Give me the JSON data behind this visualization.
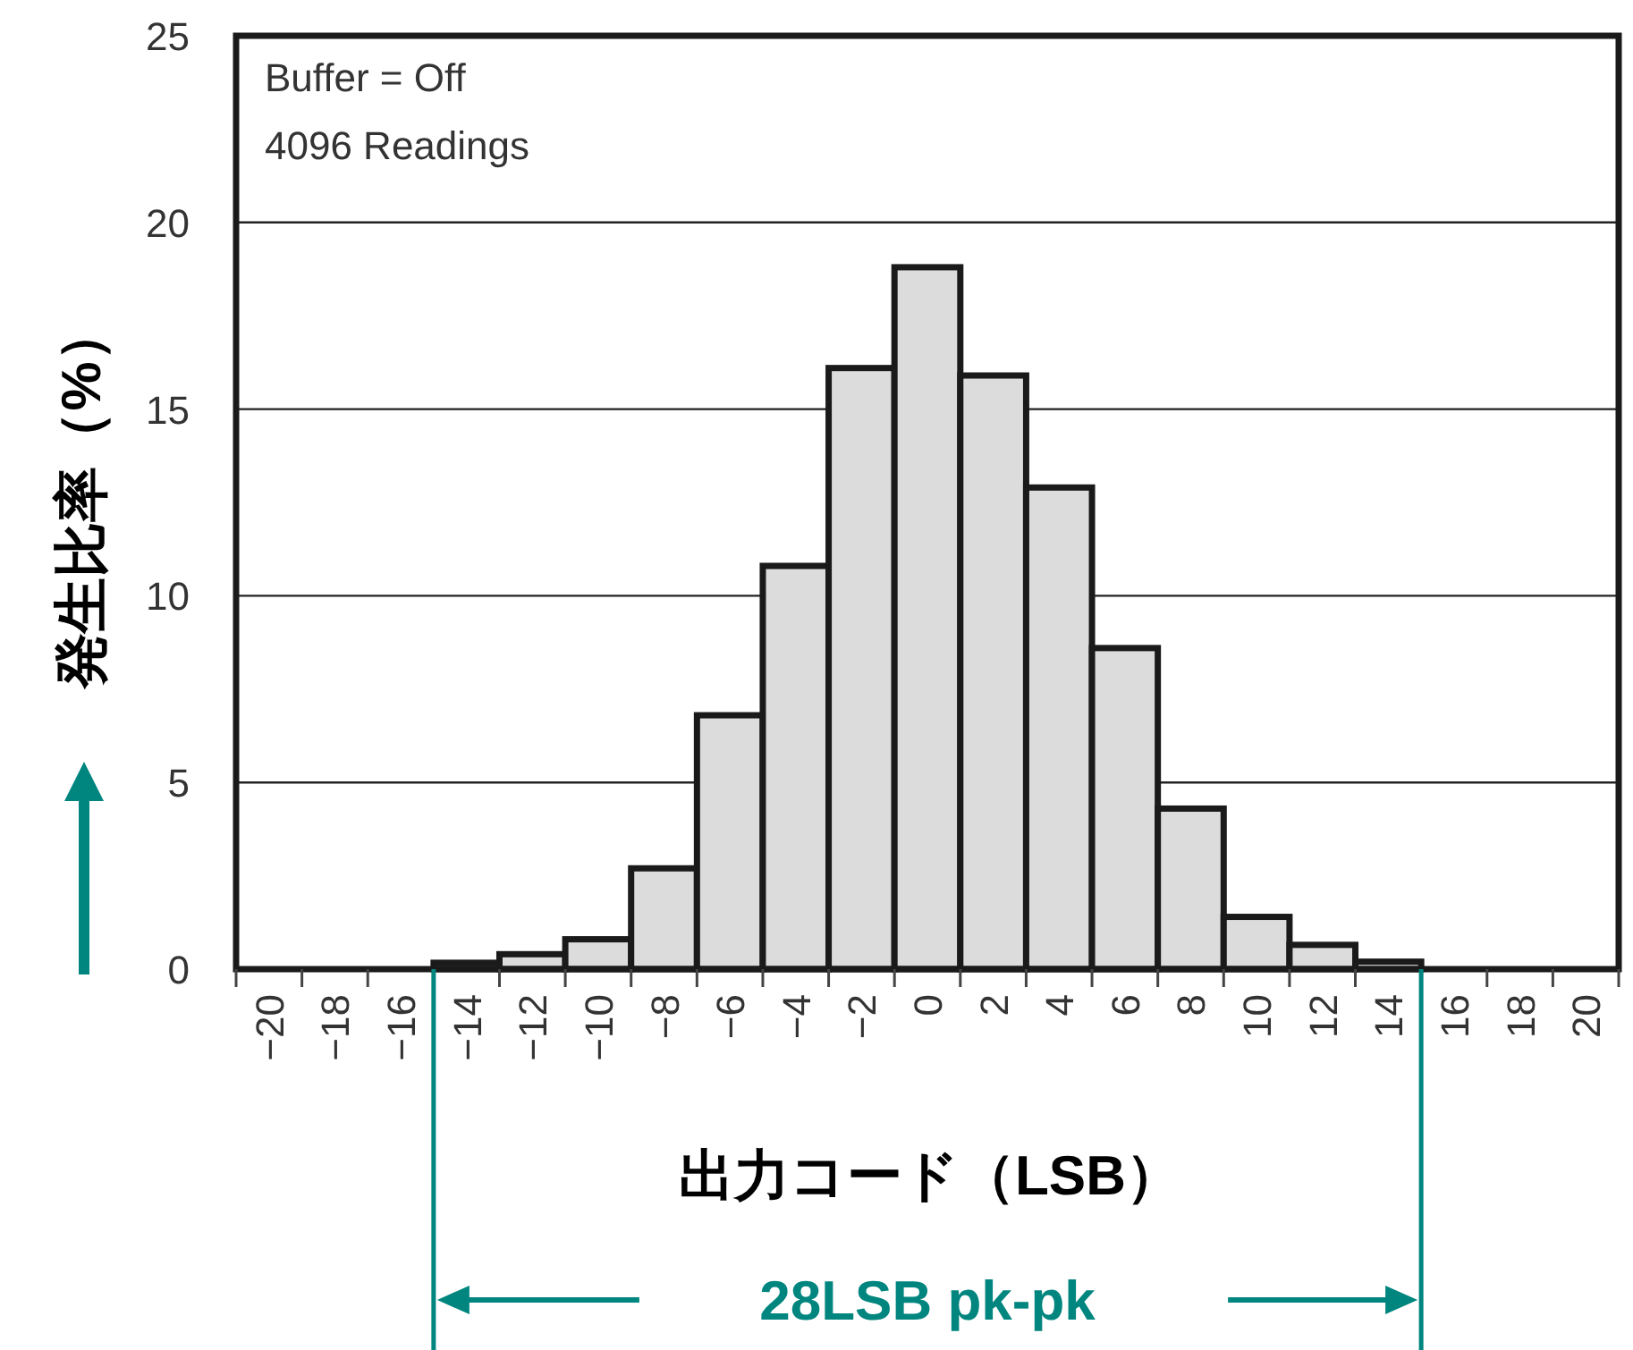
{
  "chart_data": {
    "type": "bar",
    "categories": [
      "−20",
      "−18",
      "−16",
      "−14",
      "−12",
      "−10",
      "−8",
      "−6",
      "−4",
      "−2",
      "0",
      "2",
      "4",
      "6",
      "8",
      "10",
      "12",
      "14",
      "16",
      "18",
      "20"
    ],
    "values": [
      0,
      0,
      0,
      0.17,
      0.4,
      0.8,
      2.7,
      6.8,
      10.8,
      16.1,
      18.8,
      15.9,
      12.9,
      8.6,
      4.3,
      1.4,
      0.65,
      0.2,
      0,
      0,
      0
    ],
    "color": "#dcdcdc",
    "ylim": [
      0,
      25
    ],
    "yticks": [
      0,
      5,
      10,
      15,
      20,
      25
    ],
    "grid": "y",
    "xlabel": "出力コード（LSB）",
    "ylabel": "発生比率（%）",
    "annotations": [
      "Buffer = Off",
      "4096 Readings",
      "28LSB pk-pk"
    ]
  }
}
